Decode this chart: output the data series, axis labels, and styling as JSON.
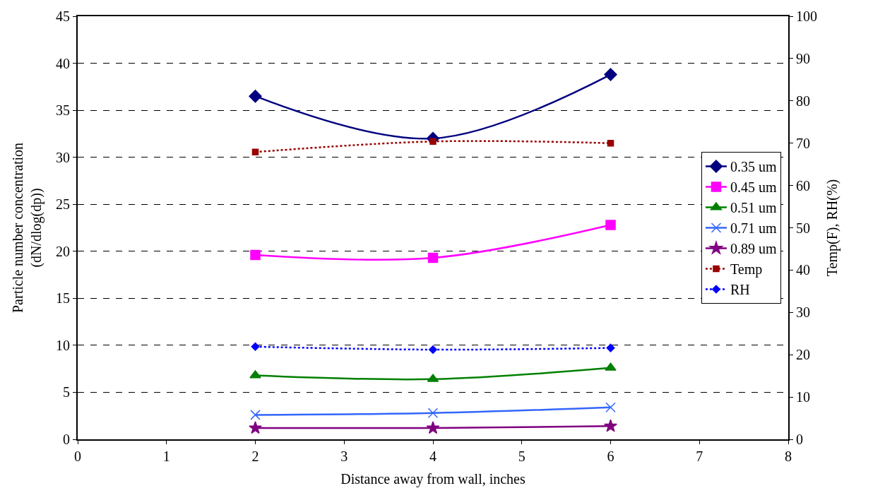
{
  "chart_data": {
    "type": "line",
    "xlabel": "Distance away from wall, inches",
    "ylabel": "Particle number concentration\n(dN/dlog(dp))",
    "y2label": "Temp(F), RH(%)",
    "x": [
      2,
      4,
      6
    ],
    "xlim": [
      0,
      8
    ],
    "xticks": [
      0,
      1,
      2,
      3,
      4,
      5,
      6,
      7,
      8
    ],
    "ylim": [
      0,
      45
    ],
    "yticks": [
      0,
      5,
      10,
      15,
      20,
      25,
      30,
      35,
      40,
      45
    ],
    "y2lim": [
      0,
      100
    ],
    "y2ticks": [
      0,
      10,
      20,
      30,
      40,
      50,
      60,
      70,
      80,
      90,
      100
    ],
    "grid": "y",
    "legend": "right",
    "series": [
      {
        "name": "0.35 um",
        "color": "#000080",
        "values": [
          36.5,
          32.0,
          38.8
        ],
        "marker": "diamond",
        "line_style": "solid"
      },
      {
        "name": "0.45 um",
        "color": "#ff00ff",
        "values": [
          19.6,
          19.3,
          22.8
        ],
        "marker": "square",
        "line_style": "solid"
      },
      {
        "name": "0.51 um",
        "color": "#008000",
        "values": [
          6.8,
          6.4,
          7.6
        ],
        "marker": "triangle",
        "line_style": "solid"
      },
      {
        "name": "0.71 um",
        "color": "#3366ff",
        "values": [
          2.6,
          2.8,
          3.4
        ],
        "marker": "cross",
        "line_style": "solid"
      },
      {
        "name": "0.89 um",
        "color": "#800080",
        "values": [
          1.2,
          1.2,
          1.4
        ],
        "marker": "star",
        "line_style": "solid"
      },
      {
        "name": "Temp",
        "color": "#990000",
        "values": [
          67.9,
          70.4,
          70.0
        ],
        "marker": "square",
        "line_style": "dotted",
        "axis": "y2"
      },
      {
        "name": "RH",
        "color": "#0000ff",
        "values": [
          21.9,
          21.2,
          21.6
        ],
        "marker": "diamond",
        "line_style": "dotted",
        "axis": "y2"
      }
    ]
  }
}
